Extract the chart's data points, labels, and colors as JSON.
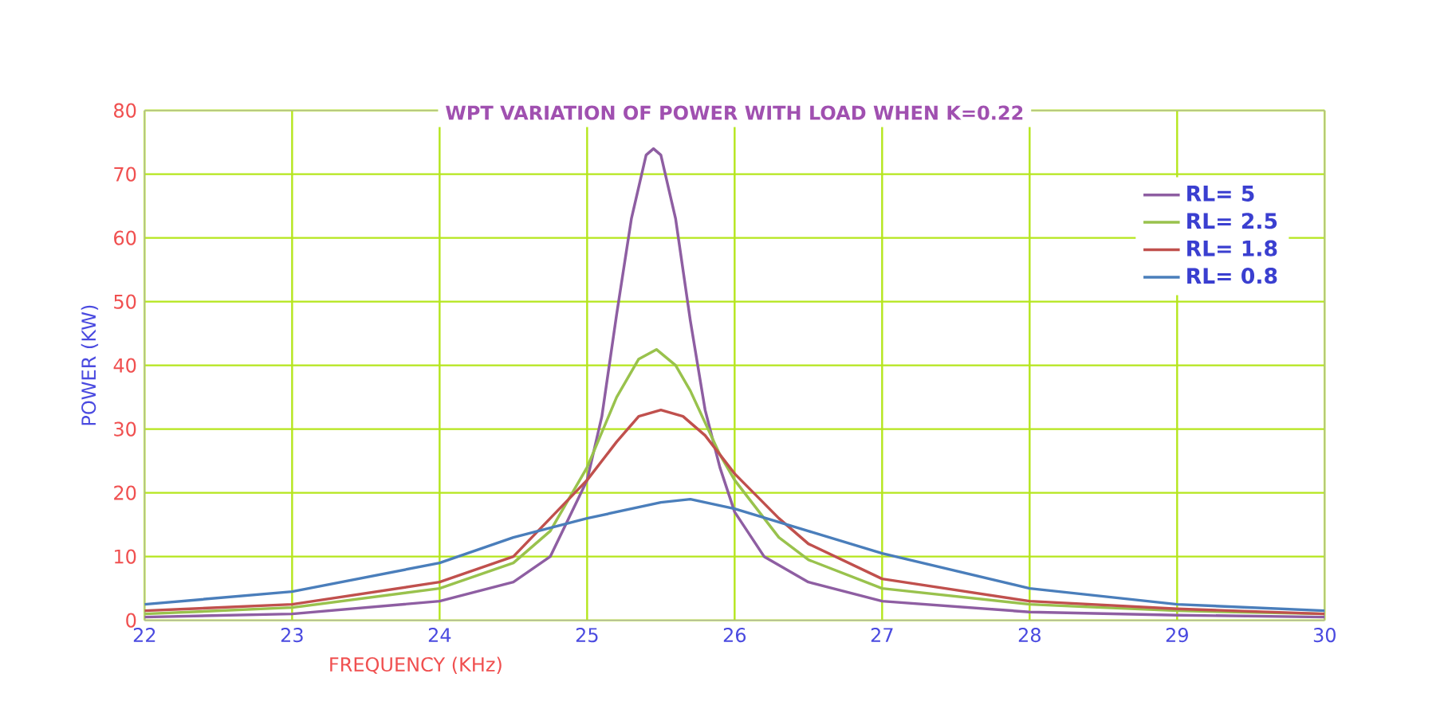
{
  "chart_data": {
    "type": "line",
    "title": "WPT VARIATION OF POWER WITH LOAD WHEN K=0.22",
    "xlabel": "FREQUENCY (KHz)",
    "ylabel": "POWER (KW)",
    "xlim": [
      22,
      30
    ],
    "ylim": [
      0,
      80
    ],
    "xticks": [
      22,
      23,
      24,
      25,
      26,
      27,
      28,
      29,
      30
    ],
    "yticks": [
      0,
      10,
      20,
      30,
      40,
      50,
      60,
      70,
      80
    ],
    "grid": true,
    "legend": "top right",
    "line_style": "solid",
    "marker": "none",
    "series": [
      {
        "name": "RL= 5",
        "color": "#8e5ea2",
        "x": [
          22,
          23,
          24,
          24.5,
          24.75,
          25,
          25.1,
          25.2,
          25.3,
          25.4,
          25.45,
          25.5,
          25.6,
          25.7,
          25.8,
          25.9,
          26,
          26.2,
          26.5,
          27,
          28,
          29,
          30
        ],
        "values": [
          0.5,
          1,
          3,
          6,
          10,
          22,
          32,
          48,
          63,
          73,
          74,
          73,
          63,
          47,
          33,
          24,
          17,
          10,
          6,
          3,
          1.3,
          0.8,
          0.5
        ]
      },
      {
        "name": "RL= 2.5",
        "color": "#99c24d",
        "x": [
          22,
          23,
          24,
          24.5,
          24.75,
          25,
          25.2,
          25.35,
          25.47,
          25.6,
          25.7,
          25.9,
          26,
          26.3,
          26.5,
          27,
          28,
          29,
          30
        ],
        "values": [
          1,
          2,
          5,
          9,
          14,
          24,
          35,
          41,
          42.5,
          40,
          36,
          26,
          22,
          13,
          9.5,
          5,
          2.5,
          1.5,
          1
        ]
      },
      {
        "name": "RL= 1.8",
        "color": "#c0504d",
        "x": [
          22,
          23,
          24,
          24.5,
          25,
          25.2,
          25.35,
          25.5,
          25.65,
          25.8,
          26,
          26.3,
          26.5,
          27,
          28,
          29,
          30
        ],
        "values": [
          1.5,
          2.5,
          6,
          10,
          22,
          28,
          32,
          33,
          32,
          29,
          23,
          16,
          12,
          6.5,
          3,
          1.8,
          1
        ]
      },
      {
        "name": "RL= 0.8",
        "color": "#4a7ebb",
        "x": [
          22,
          23,
          24,
          24.5,
          25,
          25.5,
          25.7,
          26,
          26.5,
          27,
          28,
          29,
          30
        ],
        "values": [
          2.5,
          4.5,
          9,
          13,
          16,
          18.5,
          19,
          17.5,
          14,
          10.5,
          5,
          2.5,
          1.5
        ]
      }
    ]
  }
}
